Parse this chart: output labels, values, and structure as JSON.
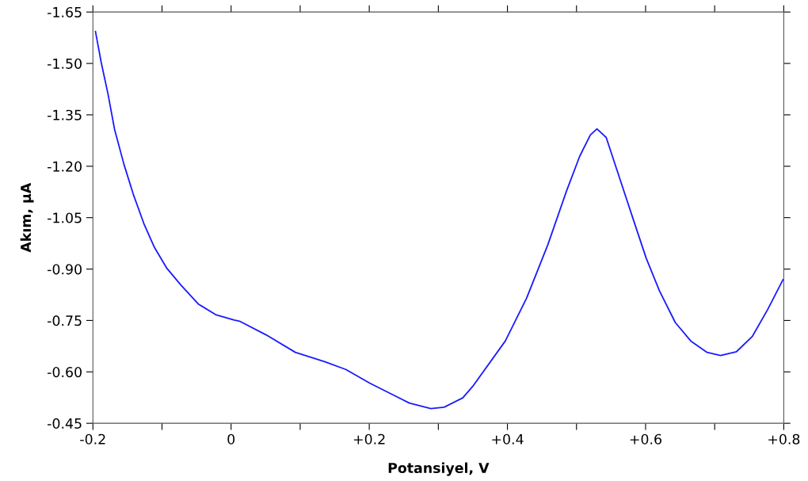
{
  "chart_data": {
    "type": "line",
    "xlabel": "Potansiyel, V",
    "ylabel": "Akım, µA",
    "x": [
      -0.1963,
      -0.188,
      -0.178,
      -0.1686,
      -0.155,
      -0.1417,
      -0.1263,
      -0.1109,
      -0.0936,
      -0.0725,
      -0.0474,
      -0.0224,
      0.0045,
      0.0122,
      0.0507,
      0.093,
      0.1353,
      0.1661,
      0.2007,
      0.2315,
      0.258,
      0.2892,
      0.3084,
      0.3353,
      0.3507,
      0.3969,
      0.4277,
      0.4585,
      0.4854,
      0.5046,
      0.52,
      0.5296,
      0.543,
      0.5623,
      0.5815,
      0.601,
      0.62,
      0.643,
      0.666,
      0.689,
      0.7085,
      0.7316,
      0.7547,
      0.777,
      0.7989
    ],
    "series": [
      {
        "color": "#1a1aff",
        "values": [
          -1.593,
          -1.503,
          -1.409,
          -1.307,
          -1.205,
          -1.119,
          -1.033,
          -0.963,
          -0.904,
          -0.853,
          -0.798,
          -0.767,
          -0.751,
          -0.748,
          -0.708,
          -0.657,
          -0.63,
          -0.607,
          -0.567,
          -0.536,
          -0.509,
          -0.493,
          -0.497,
          -0.524,
          -0.56,
          -0.69,
          -0.815,
          -0.971,
          -1.127,
          -1.229,
          -1.291,
          -1.309,
          -1.284,
          -1.166,
          -1.049,
          -0.931,
          -0.837,
          -0.744,
          -0.689,
          -0.657,
          -0.648,
          -0.659,
          -0.704,
          -0.783,
          -0.869
        ]
      }
    ],
    "xlim": [
      -0.2,
      0.8
    ],
    "xticks": [
      -0.2,
      {
        "value": -0.1,
        "label": null
      },
      0,
      {
        "value": 0.1,
        "label": null
      },
      {
        "value": 0.2,
        "label": "+0.2"
      },
      {
        "value": 0.3,
        "label": null
      },
      {
        "value": 0.4,
        "label": "+0.4"
      },
      {
        "value": 0.5,
        "label": null
      },
      {
        "value": 0.6,
        "label": "+0.6"
      },
      {
        "value": 0.7,
        "label": null
      },
      {
        "value": 0.8,
        "label": "+0.8"
      }
    ],
    "ylim": [
      -0.45,
      -1.65
    ],
    "yticks": [
      -0.45,
      {
        "value": -0.6,
        "label": "-0.60"
      },
      {
        "value": -0.75,
        "label": "-0.75"
      },
      {
        "value": -0.9,
        "label": "-0.90"
      },
      {
        "value": -1.05,
        "label": "-1.05"
      },
      {
        "value": -1.2,
        "label": "-1.20"
      },
      {
        "value": -1.35,
        "label": "-1.35"
      },
      {
        "value": -1.5,
        "label": "-1.50"
      },
      {
        "value": -1.65,
        "label": "-1.65"
      }
    ],
    "line_style": "solid",
    "marker": "none",
    "grid": false
  }
}
